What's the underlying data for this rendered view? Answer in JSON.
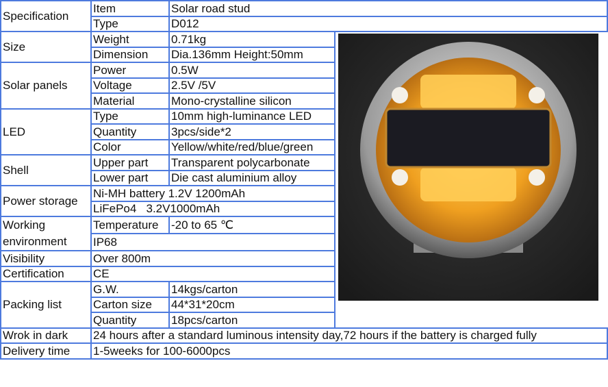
{
  "specification": {
    "label": "Specification",
    "rows": [
      {
        "key": "Item",
        "value": "Solar road stud"
      },
      {
        "key": "Type",
        "value": "D012"
      }
    ]
  },
  "size": {
    "label": "Size",
    "rows": [
      {
        "key": "Weight",
        "value": "0.71kg"
      },
      {
        "key": "Dimension",
        "value": "Dia.136mm  Height:50mm"
      }
    ]
  },
  "solar_panels": {
    "label": "Solar panels",
    "rows": [
      {
        "key": "Power",
        "value": "0.5W"
      },
      {
        "key": "Voltage",
        "value": "2.5V /5V"
      },
      {
        "key": "Material",
        "value": "Mono-crystalline silicon"
      }
    ]
  },
  "led": {
    "label": "LED",
    "rows": [
      {
        "key": "Type",
        "value": "10mm high-luminance LED"
      },
      {
        "key": "Quantity",
        "value": "3pcs/side*2"
      },
      {
        "key": "Color",
        "value": "Yellow/white/red/blue/green"
      }
    ]
  },
  "shell": {
    "label": "Shell",
    "rows": [
      {
        "key": "Upper part",
        "value": "Transparent polycarbonate"
      },
      {
        "key": "Lower part",
        "value": "Die cast aluminium alloy"
      }
    ]
  },
  "power_storage": {
    "label": "Power storage",
    "rows": [
      "Ni-MH battery 1.2V 1200mAh",
      "LiFePo4   3.2V1000mAh"
    ]
  },
  "working_environment": {
    "label": "Working environment",
    "temperature_key": "Temperature",
    "temperature_value": "-20 to 65 ℃",
    "rating": "IP68"
  },
  "visibility": {
    "label": "Visibility",
    "value": "Over 800m"
  },
  "certification": {
    "label": "Certification",
    "value": "CE"
  },
  "packing_list": {
    "label": "Packing list",
    "rows": [
      {
        "key": "G.W.",
        "value": "14kgs/carton"
      },
      {
        "key": "Carton size",
        "value": "44*31*20cm"
      },
      {
        "key": "Quantity",
        "value": "18pcs/carton"
      }
    ]
  },
  "work_in_dark": {
    "label": "Wrok in dark",
    "value": "24 hours after a standard luminous intensity day,72 hours if the battery is charged fully"
  },
  "delivery_time": {
    "label": "Delivery time",
    "value": "1-5weeks for 100-6000pcs"
  },
  "colors": {
    "border": "#4d7ade",
    "led_glow": "#f5a623"
  }
}
